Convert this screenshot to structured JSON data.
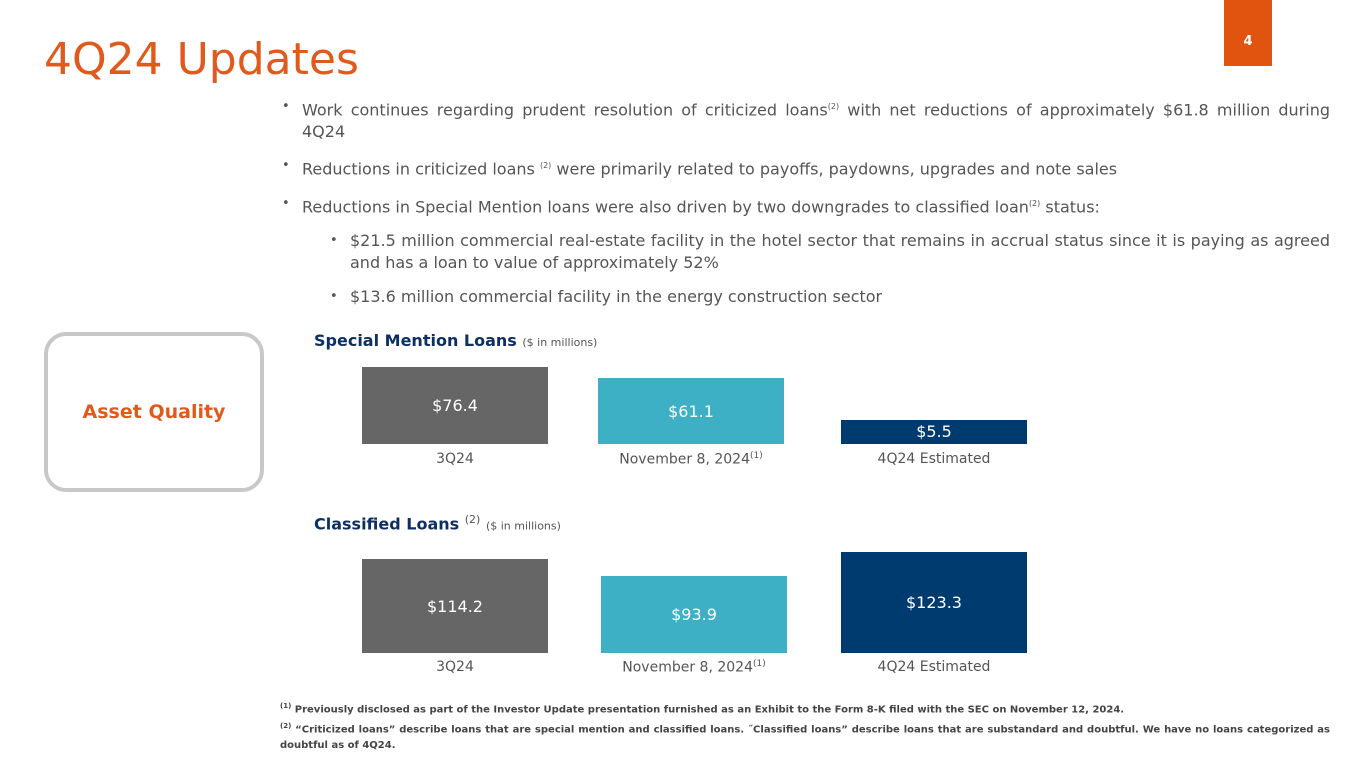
{
  "header": {
    "title": "4Q24 Updates",
    "page_number": "4"
  },
  "bullets": [
    {
      "text": "Work continues regarding prudent resolution of criticized loans",
      "sup": "(2)",
      "rest": " with net reductions of approximately $61.8 million during 4Q24"
    },
    {
      "text": "Reductions in criticized loans ",
      "sup": "(2)",
      "rest": " were primarily related to payoffs, paydowns, upgrades and note sales"
    },
    {
      "text": "Reductions in Special Mention loans were also driven by two downgrades to classified loan",
      "sup": "(2)",
      "rest": " status:"
    }
  ],
  "sub_bullets": [
    "$21.5 million commercial real-estate facility in the hotel sector that remains in accrual status since it is paying as agreed and has a loan to value of approximately 52%",
    "$13.6 million commercial facility in the energy construction sector"
  ],
  "section_label": "Asset Quality",
  "chart_data": [
    {
      "type": "bar",
      "title": "Special Mention Loans",
      "unit_note": "($ in millions)",
      "categories": [
        "3Q24",
        "November 8, 2024",
        "4Q24 Estimated"
      ],
      "category_sups": [
        "",
        "(1)",
        ""
      ],
      "values": [
        76.4,
        61.1,
        5.5
      ],
      "labels": [
        "$76.4",
        "$61.1",
        "$5.5"
      ],
      "colors": [
        "#666666",
        "#3eb0c6",
        "#003b70"
      ]
    },
    {
      "type": "bar",
      "title": "Classified Loans",
      "title_sup": "(2)",
      "unit_note": "($ in millions)",
      "categories": [
        "3Q24",
        "November 8, 2024",
        "4Q24 Estimated"
      ],
      "category_sups": [
        "",
        "(1)",
        ""
      ],
      "values": [
        114.2,
        93.9,
        123.3
      ],
      "labels": [
        "$114.2",
        "$93.9",
        "$123.3"
      ],
      "colors": [
        "#666666",
        "#3eb0c6",
        "#003b70"
      ]
    }
  ],
  "footnotes": [
    {
      "sup": "(1)",
      "text": " Previously disclosed as part of the Investor Update presentation furnished as an Exhibit to the Form 8-K filed with the SEC on November 12, 2024."
    },
    {
      "sup": "(2)",
      "text": " “Criticized loans” describe loans that are special mention and classified loans. ˝Classified loans” describe loans that are substandard and doubtful. We have no loans categorized as doubtful as of 4Q24."
    }
  ]
}
